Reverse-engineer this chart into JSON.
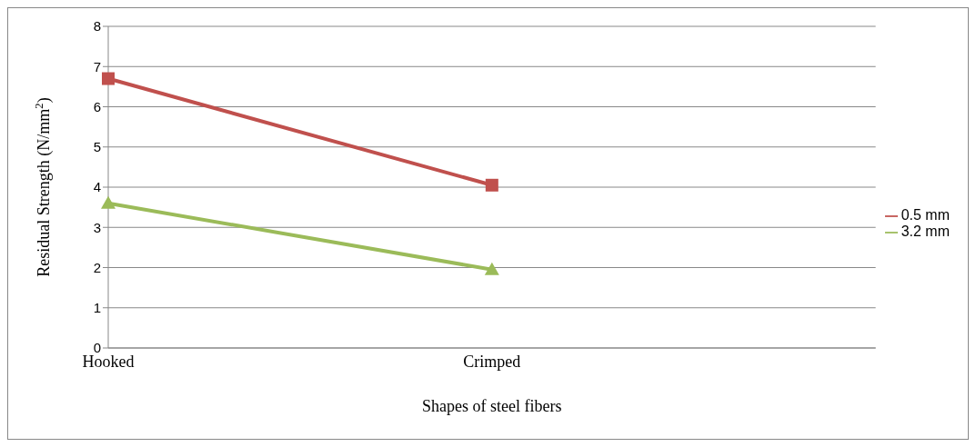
{
  "chart_data": {
    "type": "line",
    "xlabel": "Shapes of steel fibers",
    "ylabel": "Residual Strength (N/mm$^{2}$)",
    "categories": [
      "Hooked",
      "Crimped",
      null
    ],
    "series": [
      {
        "name": "0.5 mm",
        "color": "#c0504d",
        "values": [
          6.7,
          4.05,
          null
        ],
        "marker": "square"
      },
      {
        "name": "3.2 mm",
        "color": "#9bbb59",
        "values": [
          3.6,
          1.95,
          null
        ],
        "marker": "triangle"
      }
    ],
    "ylim": [
      0,
      8
    ],
    "yticks": [
      0,
      1,
      2,
      3,
      4,
      5,
      6,
      7,
      8
    ],
    "grid": "y",
    "legend": "right",
    "line_style": "solid"
  }
}
